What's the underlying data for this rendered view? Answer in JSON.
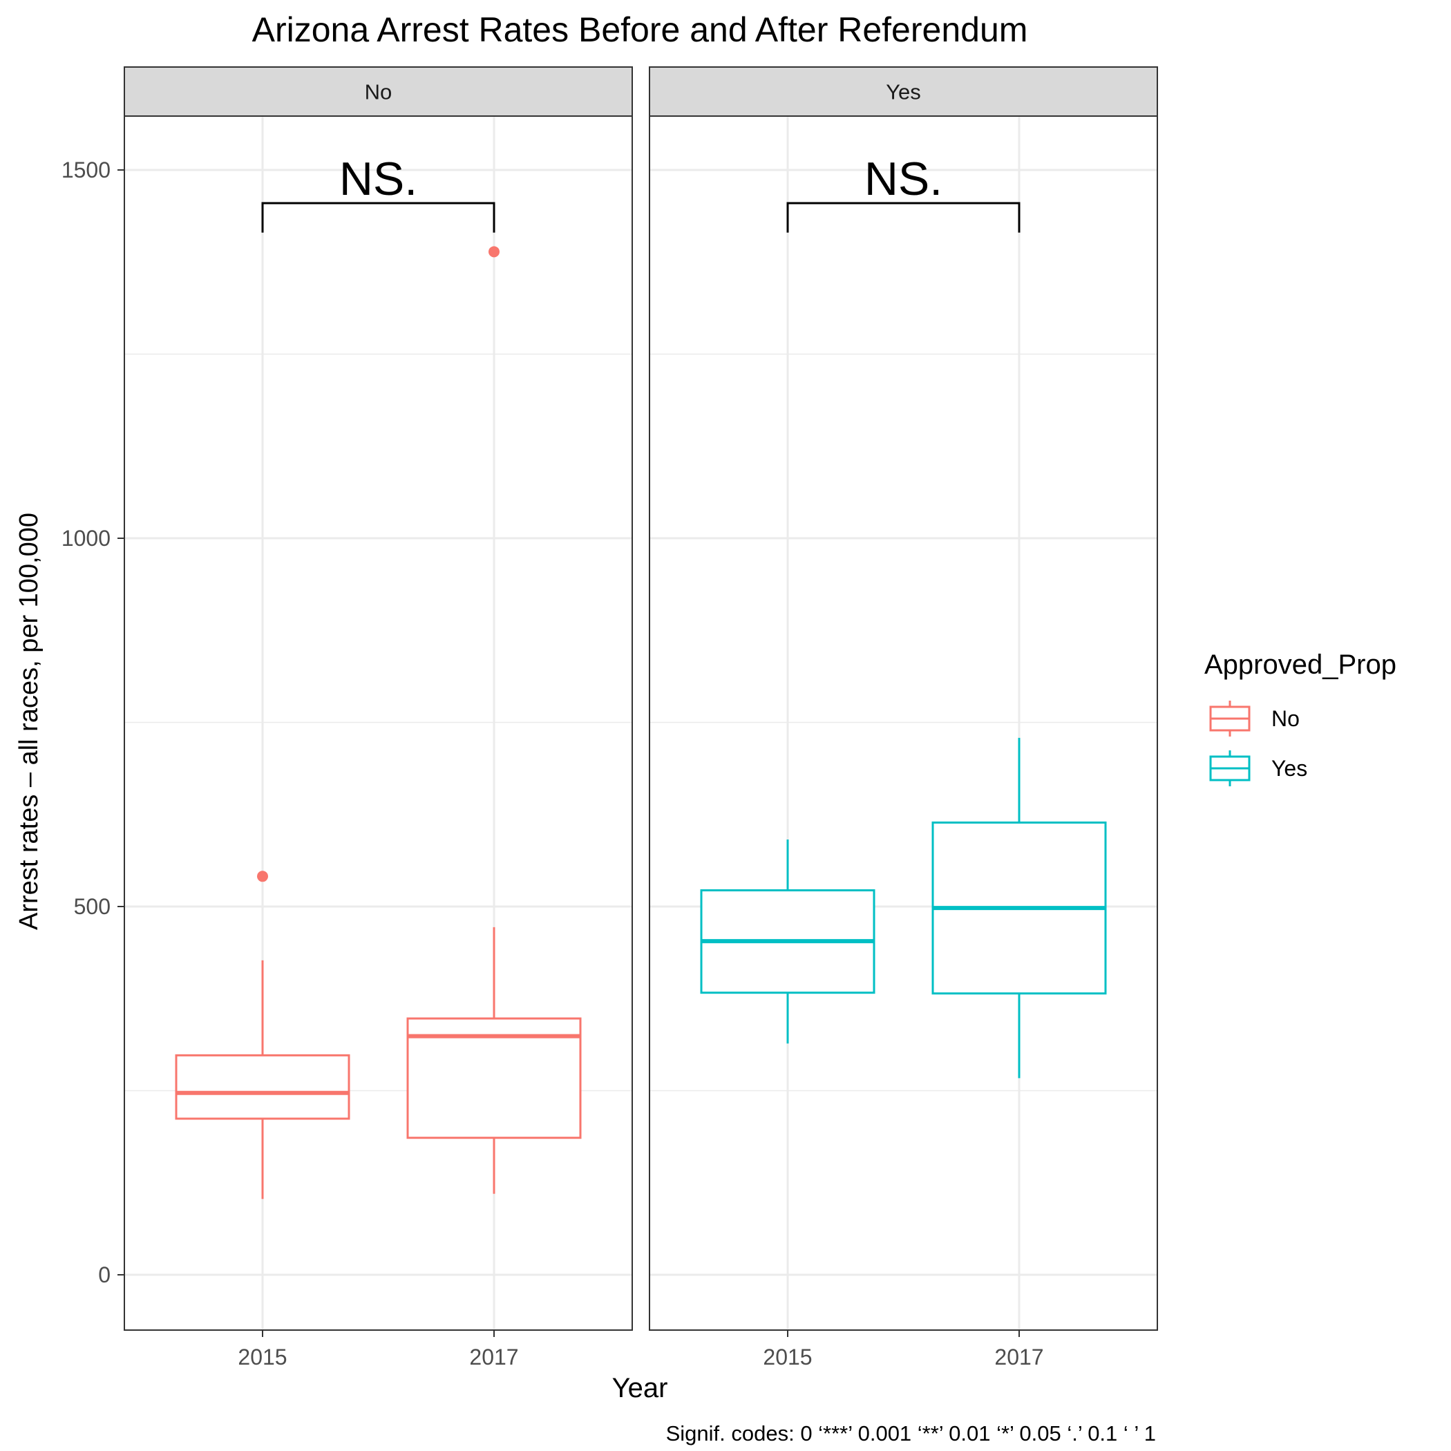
{
  "chart_data": {
    "type": "boxplot",
    "title": "Arizona Arrest Rates Before and After Referendum",
    "xlabel": "Year",
    "ylabel": "Arrest rates – all races, per 100,000",
    "ylim": [
      -75,
      1650
    ],
    "yticks": [
      0,
      500,
      1000,
      1500
    ],
    "ytick_labels": [
      "0",
      "500",
      "1000",
      "1500"
    ],
    "categories": [
      "2015",
      "2017"
    ],
    "grid": true,
    "legend_position": "right",
    "legend": {
      "title": "Approved_Prop",
      "entries": [
        {
          "label": "No",
          "color": "#F8766D"
        },
        {
          "label": "Yes",
          "color": "#00BFC4"
        }
      ]
    },
    "facets": [
      {
        "label": "No",
        "color": "#F8766D",
        "annotation": "NS.",
        "boxes": [
          {
            "x": "2015",
            "whisker_low": 103,
            "q1": 212,
            "median": 247,
            "q3": 298,
            "whisker_high": 427,
            "outliers": [
              541
            ]
          },
          {
            "x": "2017",
            "whisker_low": 110,
            "q1": 186,
            "median": 324,
            "q3": 348,
            "whisker_high": 472,
            "outliers": [
              1389
            ]
          }
        ]
      },
      {
        "label": "Yes",
        "color": "#00BFC4",
        "annotation": "NS.",
        "boxes": [
          {
            "x": "2015",
            "whisker_low": 314,
            "q1": 383,
            "median": 453,
            "q3": 522,
            "whisker_high": 591,
            "outliers": []
          },
          {
            "x": "2017",
            "whisker_low": 267,
            "q1": 382,
            "median": 498,
            "q3": 614,
            "whisker_high": 729,
            "outliers": []
          }
        ]
      }
    ],
    "footnote": "Signif. codes:  0 ‘***’ 0.001 ‘**’ 0.01 ‘*’ 0.05 ‘.’ 0.1 ‘ ’ 1"
  }
}
